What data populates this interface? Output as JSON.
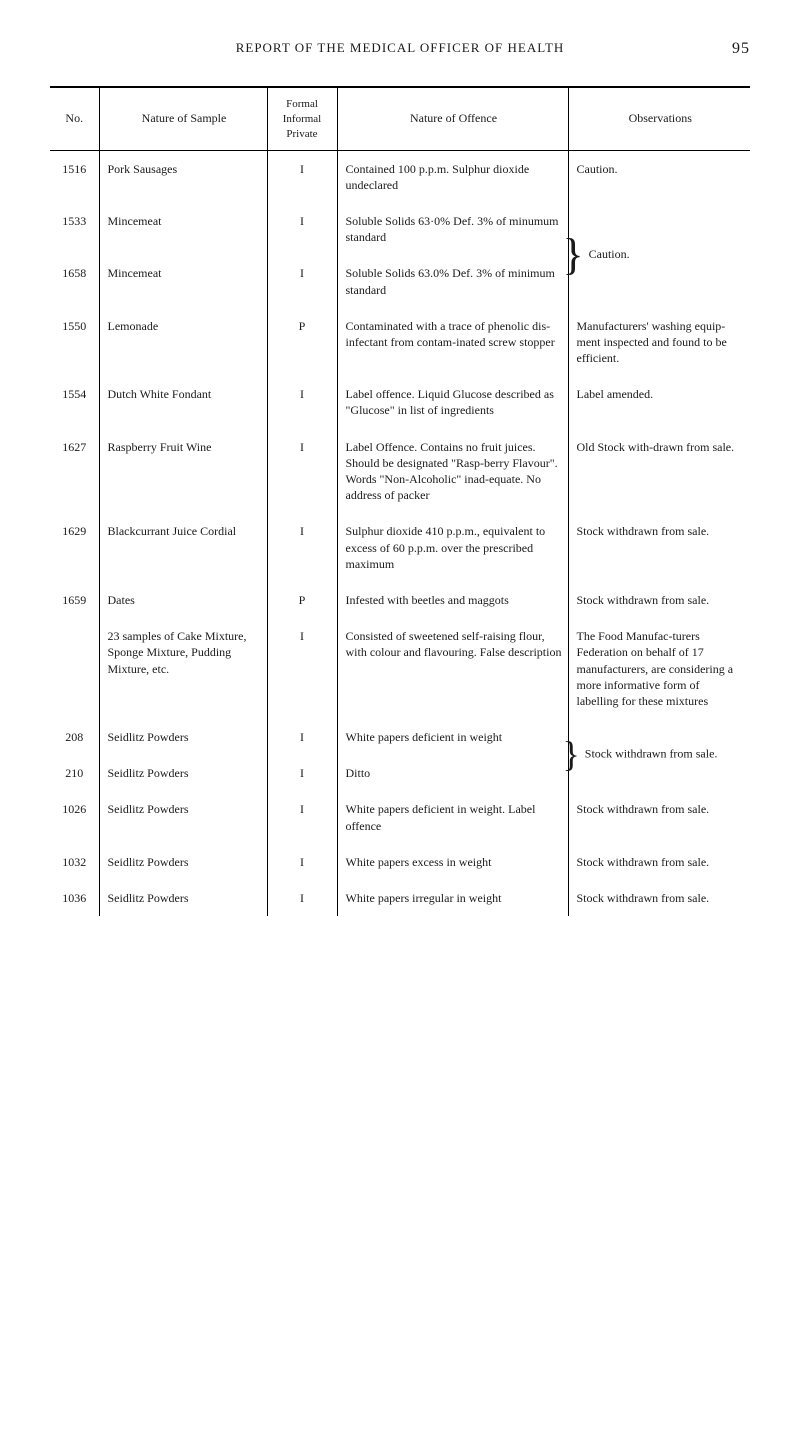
{
  "header": {
    "title": "REPORT OF THE MEDICAL OFFICER OF HEALTH",
    "page_number": "95"
  },
  "table": {
    "columns": {
      "no": "No.",
      "sample": "Nature of Sample",
      "formal": "Formal\nInformal\nPrivate",
      "offence": "Nature of Offence",
      "observations": "Observations"
    },
    "rows": [
      {
        "no": "1516",
        "sample": "Pork Sausages",
        "formal": "I",
        "offence": "Contained 100 p.p.m. Sulphur dioxide undeclared",
        "observations": "Caution."
      },
      {
        "no": "1533",
        "sample": "Mincemeat",
        "formal": "I",
        "offence": "Soluble Solids 63·0% Def. 3% of minumum standard",
        "observations": "",
        "brace_group": "caution1"
      },
      {
        "no": "1658",
        "sample": "Mincemeat",
        "formal": "I",
        "offence": "Soluble Solids 63.0% Def. 3% of minimum standard",
        "observations": "Caution.",
        "brace_group": "caution1"
      },
      {
        "no": "1550",
        "sample": "Lemonade",
        "formal": "P",
        "offence": "Contaminated with a trace of phenolic dis-infectant from contam-inated screw stopper",
        "observations": "Manufacturers' washing equip-ment inspected and found to be efficient."
      },
      {
        "no": "1554",
        "sample": "Dutch White Fondant",
        "formal": "I",
        "offence": "Label offence. Liquid Glucose described as \"Glucose\" in list of ingredients",
        "observations": "Label amended."
      },
      {
        "no": "1627",
        "sample": "Raspberry Fruit Wine",
        "formal": "I",
        "offence": "Label Offence. Contains no fruit juices. Should be designated \"Rasp-berry Flavour\". Words \"Non-Alcoholic\" inad-equate. No address of packer",
        "observations": "Old Stock with-drawn from sale."
      },
      {
        "no": "1629",
        "sample": "Blackcurrant Juice Cordial",
        "formal": "I",
        "offence": "Sulphur dioxide 410 p.p.m., equivalent to excess of 60 p.p.m. over the prescribed maximum",
        "observations": "Stock withdrawn from sale."
      },
      {
        "no": "1659",
        "sample": "Dates",
        "formal": "P",
        "offence": "Infested with beetles and maggots",
        "observations": "Stock withdrawn from sale."
      },
      {
        "no": "",
        "sample": "23 samples of Cake Mixture, Sponge Mixture, Pudding Mixture, etc.",
        "formal": "I",
        "offence": "Consisted of sweetened self-raising flour, with colour and flavouring. False description",
        "observations": "The Food Manufac-turers Federation on behalf of 17 manufacturers, are considering a more informative form of labelling for these mixtures"
      },
      {
        "no": "208",
        "sample": "Seidlitz Powders",
        "formal": "I",
        "offence": "White papers deficient in weight",
        "observations": "",
        "brace_group": "seidlitz1"
      },
      {
        "no": "210",
        "sample": "Seidlitz Powders",
        "formal": "I",
        "offence": "Ditto",
        "observations": "Stock withdrawn from sale.",
        "brace_group": "seidlitz1"
      },
      {
        "no": "1026",
        "sample": "Seidlitz Powders",
        "formal": "I",
        "offence": "White papers deficient in weight. Label offence",
        "observations": "Stock withdrawn from sale."
      },
      {
        "no": "1032",
        "sample": "Seidlitz Powders",
        "formal": "I",
        "offence": "White papers excess in weight",
        "observations": "Stock withdrawn from sale."
      },
      {
        "no": "1036",
        "sample": "Seidlitz Powders",
        "formal": "I",
        "offence": "White papers irregular in weight",
        "observations": "Stock withdrawn from sale."
      }
    ],
    "styling": {
      "type": "table",
      "border_color": "#000000",
      "background_color": "#ffffff",
      "text_color": "#1a1a1a",
      "font_family": "serif",
      "header_fontsize": 12,
      "body_fontsize": 12,
      "col_widths_pct": [
        7,
        24,
        10,
        33,
        26
      ],
      "top_rule_weight": 2,
      "inner_rule_weight": 1
    }
  }
}
